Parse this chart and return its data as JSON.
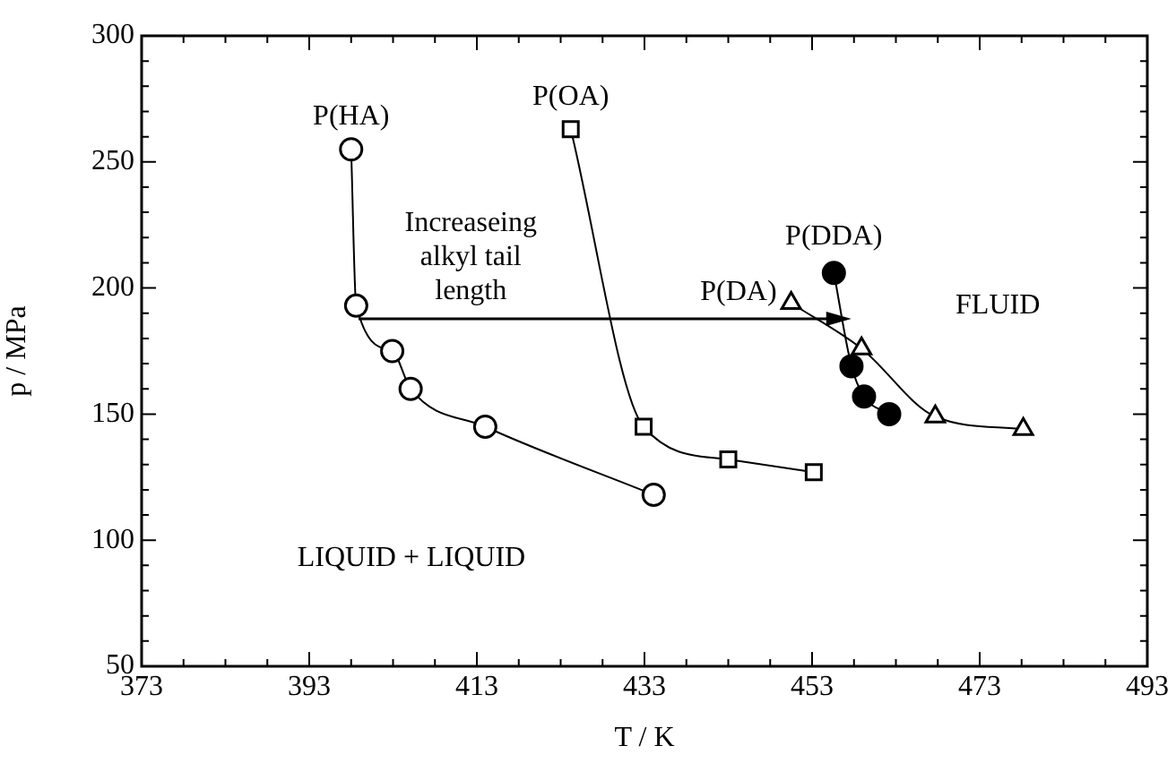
{
  "chart_data": {
    "type": "line",
    "xlabel": "T / K",
    "ylabel": "p / MPa",
    "xlim": [
      373,
      493
    ],
    "xticks": [
      373,
      393,
      413,
      433,
      453,
      473,
      493
    ],
    "ylim": [
      50,
      300
    ],
    "yticks": [
      50,
      100,
      150,
      200,
      250,
      300
    ],
    "grid": false,
    "legend": false,
    "series": [
      {
        "name": "P(HA)",
        "color": "#000000",
        "marker": "circle",
        "x": [
          398,
          398.6,
          402.9,
          405.1,
          414,
          434.1
        ],
        "values": [
          255,
          193,
          175,
          160,
          145,
          118
        ]
      },
      {
        "name": "P(OA)",
        "color": "#000000",
        "marker": "square",
        "x": [
          424.2,
          432.9,
          443,
          453.2
        ],
        "values": [
          263,
          145,
          132,
          127
        ]
      },
      {
        "name": "P(DA)",
        "color": "#000000",
        "marker": "triangle",
        "x": [
          450.5,
          458.9,
          467.7,
          478.2
        ],
        "values": [
          194,
          176,
          149,
          144
        ]
      },
      {
        "name": "P(DDA)",
        "color": "#000000",
        "marker": "circle",
        "colors": [
          "#000000",
          "#000000",
          "#000000",
          "#000000"
        ],
        "x": [
          455.6,
          457.7,
          459.2,
          462.2
        ],
        "values": [
          206,
          169,
          157,
          150
        ]
      }
    ],
    "annotations": [
      "Increaseing alkyl tail length",
      "LIQUID + LIQUID",
      "FLUID"
    ]
  }
}
